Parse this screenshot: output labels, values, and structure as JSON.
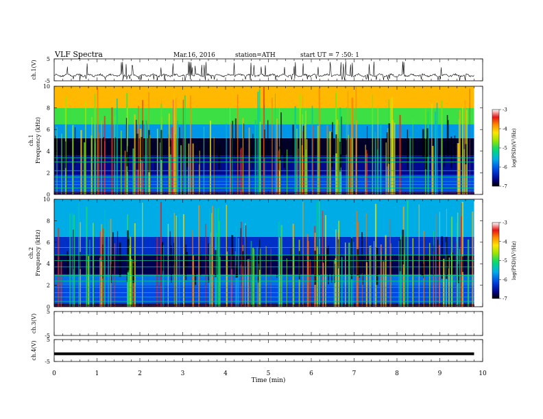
{
  "header": {
    "title": "VLF  Spectra",
    "date": "Mar.16, 2016",
    "station": "station=ATH",
    "start": "start  UT  =   7  :50: 1"
  },
  "chart_data": [
    {
      "type": "line",
      "ylabel": "ch.1(V)",
      "ylim": [
        -5,
        5
      ],
      "yticks": [
        "5",
        "-5"
      ],
      "xlim": [
        0,
        10
      ],
      "description_values": {
        "mean": -2.5,
        "spike_min": -5,
        "spike_max": 4
      }
    },
    {
      "type": "heatmap",
      "ylabel": "ch.1\nFrequency (kHz)",
      "ylabel_lines": [
        "ch.1",
        "Frequency (kHz)"
      ],
      "ylim": [
        0,
        10
      ],
      "yticks": [
        "0",
        "2",
        "4",
        "6",
        "8",
        "10"
      ],
      "xlim": [
        0,
        10
      ],
      "data_end_min": 9.8,
      "colorbar": {
        "label": "log(PSD)(V²/Hz)",
        "ticks": [
          "-3",
          "-4",
          "-5",
          "-6",
          "-7"
        ],
        "range": [
          -7,
          -3
        ]
      },
      "bands": [
        {
          "f": [
            0.0,
            0.3
          ],
          "v": -6.8
        },
        {
          "f": [
            0.3,
            1.8
          ],
          "v": -6.1
        },
        {
          "f": [
            1.8,
            3.6
          ],
          "v": -6.6
        },
        {
          "f": [
            3.6,
            5.2
          ],
          "v": -6.9
        },
        {
          "f": [
            5.2,
            6.5
          ],
          "v": -5.7
        },
        {
          "f": [
            6.5,
            8.0
          ],
          "v": -4.9
        },
        {
          "f": [
            8.0,
            10.0
          ],
          "v": -4.0
        }
      ]
    },
    {
      "type": "heatmap",
      "ylabel": "ch.2\nFrequency (kHz)",
      "ylabel_lines": [
        "ch.2",
        "Frequency (kHz)"
      ],
      "ylim": [
        0,
        10
      ],
      "yticks": [
        "0",
        "2",
        "4",
        "6",
        "8",
        "10"
      ],
      "xlim": [
        0,
        10
      ],
      "data_end_min": 9.8,
      "colorbar": {
        "label": "log(PSD)(V²/Hz)",
        "ticks": [
          "-3",
          "-4",
          "-5",
          "-6",
          "-7"
        ],
        "range": [
          -7,
          -3
        ]
      },
      "bands": [
        {
          "f": [
            0.0,
            0.3
          ],
          "v": -6.9
        },
        {
          "f": [
            0.3,
            2.0
          ],
          "v": -6.1
        },
        {
          "f": [
            2.0,
            3.0
          ],
          "v": -5.9
        },
        {
          "f": [
            3.0,
            4.8
          ],
          "v": -6.8
        },
        {
          "f": [
            4.8,
            6.5
          ],
          "v": -6.3
        },
        {
          "f": [
            6.5,
            10.0
          ],
          "v": -5.6
        }
      ]
    },
    {
      "type": "line",
      "ylabel": "ch.3(V)",
      "ylim": [
        -5,
        5
      ],
      "yticks": [
        "5",
        "-5"
      ],
      "xlim": [
        0,
        10
      ]
    },
    {
      "type": "line",
      "ylabel": "ch.4(V)",
      "ylim": [
        -5,
        5
      ],
      "yticks": [
        "5",
        "-5"
      ],
      "xlim": [
        0,
        10
      ],
      "constant_value": -1.5
    }
  ],
  "xaxis": {
    "label": "Time  (min)",
    "ticks": [
      "0",
      "1",
      "2",
      "3",
      "4",
      "5",
      "6",
      "7",
      "8",
      "9",
      "10"
    ]
  }
}
